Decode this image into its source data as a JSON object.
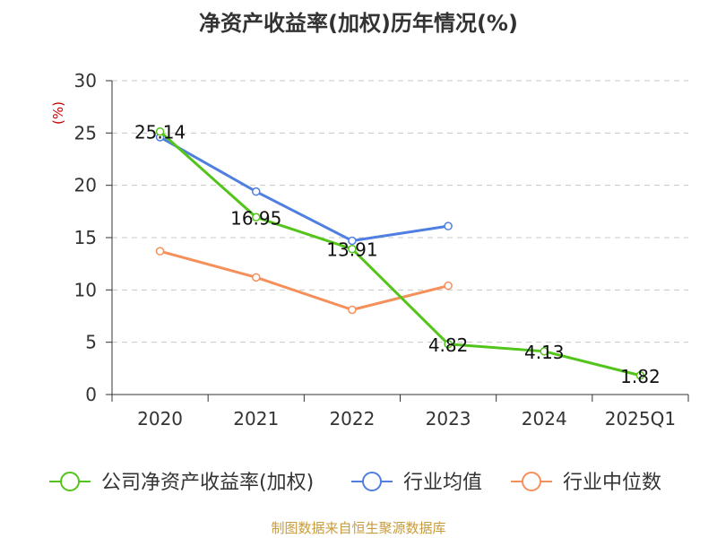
{
  "title": "净资产收益率(加权)历年情况(%)",
  "footer": "制图数据来自恒生聚源数据库",
  "colors": {
    "series_1": "#52c41a",
    "series_2": "#4f7fe0",
    "series_3": "#f5905a",
    "footer": "#c89b3c",
    "ylabel": "#cc0000"
  },
  "chart_data": {
    "type": "line",
    "categories": [
      "2020",
      "2021",
      "2022",
      "2023",
      "2024",
      "2025Q1"
    ],
    "ylabel": "(%)",
    "ylim": [
      0,
      30
    ],
    "yticks": [
      0,
      5,
      10,
      15,
      20,
      25,
      30
    ],
    "grid": true,
    "legend_placement": "bottom",
    "series": [
      {
        "name": "公司净资产收益率(加权)",
        "color": "#52c41a",
        "values": [
          25.14,
          16.95,
          13.91,
          4.82,
          4.13,
          1.82
        ],
        "labels": [
          "25.14",
          "16.95",
          "13.91",
          "4.82",
          "4.13",
          "1.82"
        ]
      },
      {
        "name": "行业均值",
        "color": "#4f7fe0",
        "values": [
          24.6,
          19.4,
          14.7,
          16.1,
          null,
          null
        ]
      },
      {
        "name": "行业中位数",
        "color": "#f5905a",
        "values": [
          13.7,
          11.2,
          8.1,
          10.4,
          null,
          null
        ]
      }
    ]
  }
}
